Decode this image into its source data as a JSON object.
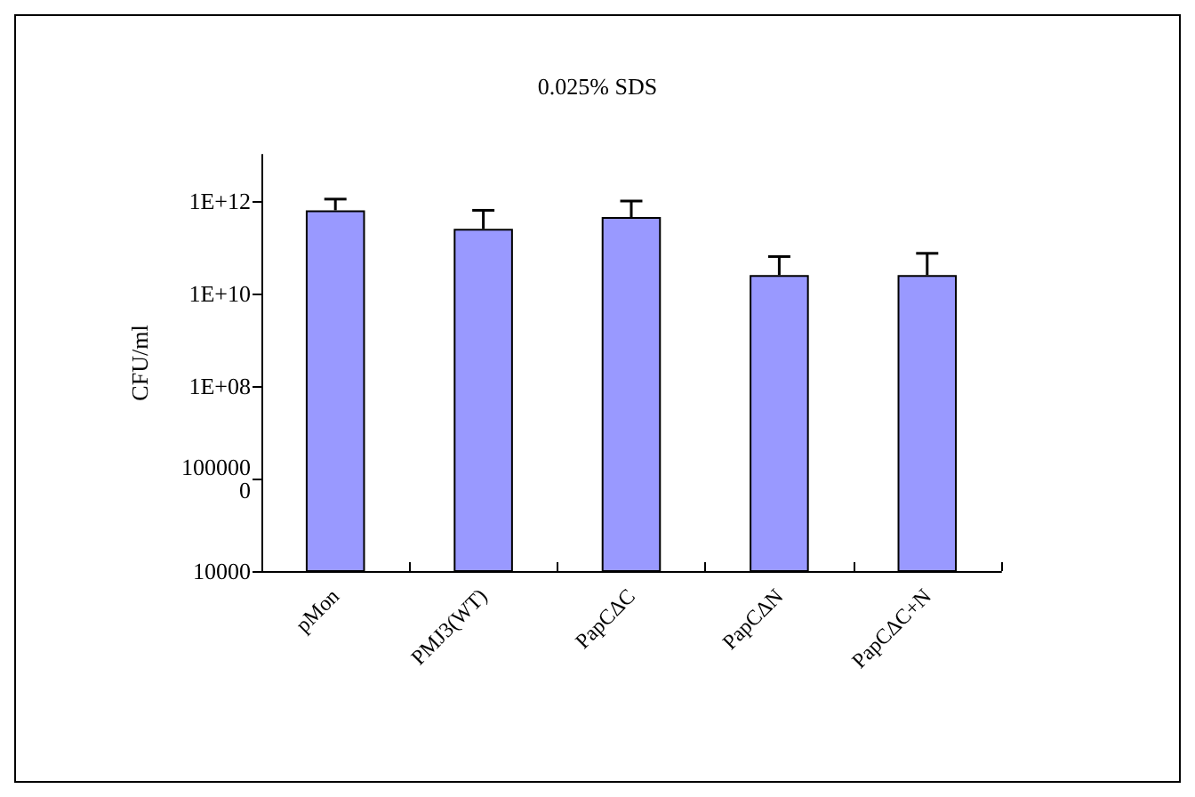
{
  "chart_data": {
    "type": "bar",
    "title": "0.025% SDS",
    "ylabel": "CFU/ml",
    "categories": [
      "pMon",
      "PMJ3(WT)",
      "PapCΔC",
      "PapCΔN",
      "PapCΔC+N"
    ],
    "values": [
      630000000000,
      250000000000,
      450000000000,
      25000000000,
      25000000000
    ],
    "errors": [
      [
        630000000000,
        1100000000000
      ],
      [
        250000000000,
        630000000000
      ],
      [
        450000000000,
        1000000000000
      ],
      [
        25000000000,
        63000000000
      ],
      [
        25000000000,
        74000000000
      ]
    ],
    "color": "#9999ff",
    "log": true,
    "ylim": [
      10000,
      10000000000000
    ],
    "yticks": [
      10000,
      {
        "value": 1000000,
        "label": "1000000"
      },
      {
        "value": 100000000,
        "label": "1E+08"
      },
      {
        "value": 10000000000,
        "label": "1E+10"
      },
      {
        "value": 1000000000000,
        "label": "1E+12"
      }
    ],
    "grid": false
  }
}
